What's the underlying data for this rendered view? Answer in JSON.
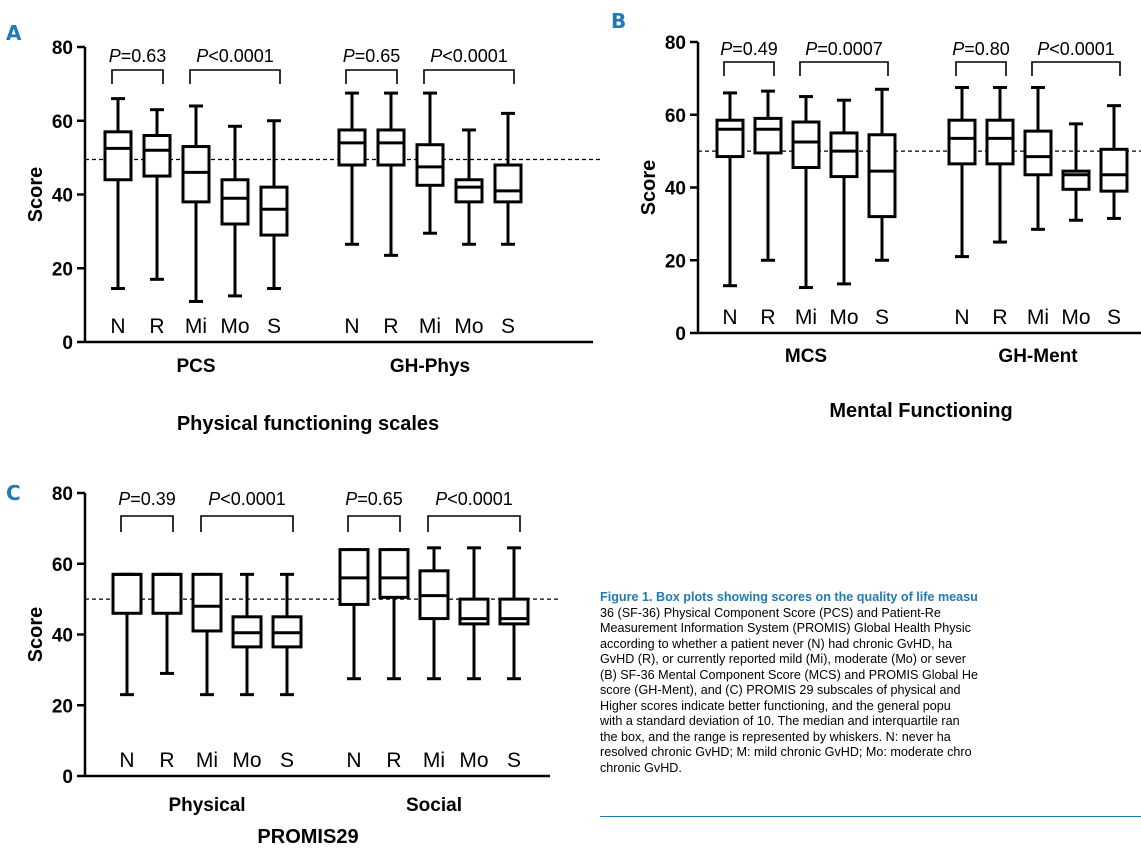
{
  "chart_data": [
    {
      "type": "boxplot",
      "panel_label": "A",
      "title": "Physical functioning scales",
      "ylabel": "Score",
      "ylim": [
        0,
        80
      ],
      "yticks": [
        0,
        20,
        40,
        60,
        80
      ],
      "reference_line": 49.5,
      "groups": [
        {
          "name": "PCS",
          "pvalues": [
            "=0.63",
            "<0.0001"
          ],
          "boxes": [
            {
              "label": "N",
              "min": 14.5,
              "q1": 44,
              "median": 52.5,
              "q3": 57,
              "max": 66
            },
            {
              "label": "R",
              "min": 17,
              "q1": 45,
              "median": 52,
              "q3": 56,
              "max": 63
            },
            {
              "label": "Mi",
              "min": 11,
              "q1": 38,
              "median": 46,
              "q3": 53,
              "max": 64
            },
            {
              "label": "Mo",
              "min": 12.5,
              "q1": 32,
              "median": 39,
              "q3": 44,
              "max": 58.5
            },
            {
              "label": "S",
              "min": 14.5,
              "q1": 29,
              "median": 36,
              "q3": 42,
              "max": 60
            }
          ]
        },
        {
          "name": "GH-Phys",
          "pvalues": [
            "=0.65",
            "<0.0001"
          ],
          "boxes": [
            {
              "label": "N",
              "min": 26.5,
              "q1": 48,
              "median": 54,
              "q3": 57.5,
              "max": 67.5
            },
            {
              "label": "R",
              "min": 23.5,
              "q1": 48,
              "median": 54,
              "q3": 57.5,
              "max": 67.5
            },
            {
              "label": "Mi",
              "min": 29.5,
              "q1": 42.5,
              "median": 47.5,
              "q3": 53.5,
              "max": 67.5
            },
            {
              "label": "Mo",
              "min": 26.5,
              "q1": 38,
              "median": 42,
              "q3": 44,
              "max": 57.5
            },
            {
              "label": "S",
              "min": 26.5,
              "q1": 38,
              "median": 41,
              "q3": 48,
              "max": 62
            }
          ]
        }
      ]
    },
    {
      "type": "boxplot",
      "panel_label": "B",
      "title": "Mental Functioning",
      "ylabel": "Score",
      "ylim": [
        0,
        80
      ],
      "yticks": [
        0,
        20,
        40,
        60,
        80
      ],
      "reference_line": 50,
      "groups": [
        {
          "name": "MCS",
          "pvalues": [
            "=0.49",
            "=0.0007"
          ],
          "boxes": [
            {
              "label": "N",
              "min": 13,
              "q1": 48.5,
              "median": 56,
              "q3": 58.5,
              "max": 66
            },
            {
              "label": "R",
              "min": 20,
              "q1": 49.5,
              "median": 56,
              "q3": 59,
              "max": 66.5
            },
            {
              "label": "Mi",
              "min": 12.5,
              "q1": 45.5,
              "median": 52.5,
              "q3": 58,
              "max": 65
            },
            {
              "label": "Mo",
              "min": 13.5,
              "q1": 43,
              "median": 50,
              "q3": 55,
              "max": 64
            },
            {
              "label": "S",
              "min": 20,
              "q1": 32,
              "median": 44.5,
              "q3": 54.5,
              "max": 67
            }
          ]
        },
        {
          "name": "GH-Ment",
          "pvalues": [
            "=0.80",
            "<0.0001"
          ],
          "boxes": [
            {
              "label": "N",
              "min": 21,
              "q1": 46.5,
              "median": 53.5,
              "q3": 58.5,
              "max": 67.5
            },
            {
              "label": "R",
              "min": 25,
              "q1": 46.5,
              "median": 53.5,
              "q3": 58.5,
              "max": 67.5
            },
            {
              "label": "Mi",
              "min": 28.5,
              "q1": 43.5,
              "median": 48.5,
              "q3": 55.5,
              "max": 67.5
            },
            {
              "label": "Mo",
              "min": 31,
              "q1": 39.5,
              "median": 43.5,
              "q3": 44.5,
              "max": 57.5
            },
            {
              "label": "S",
              "min": 31.5,
              "q1": 39,
              "median": 43.5,
              "q3": 50.5,
              "max": 62.5
            }
          ]
        }
      ]
    },
    {
      "type": "boxplot",
      "panel_label": "C",
      "title": "PROMIS29",
      "ylabel": "Score",
      "ylim": [
        0,
        80
      ],
      "yticks": [
        0,
        20,
        40,
        60,
        80
      ],
      "reference_line": 50,
      "groups": [
        {
          "name": "Physical",
          "pvalues": [
            "=0.39",
            "<0.0001"
          ],
          "boxes": [
            {
              "label": "N",
              "min": 23,
              "q1": 46,
              "median": 57,
              "q3": 57,
              "max": 57
            },
            {
              "label": "R",
              "min": 29,
              "q1": 46,
              "median": 57,
              "q3": 57,
              "max": 57
            },
            {
              "label": "Mi",
              "min": 23,
              "q1": 41,
              "median": 48,
              "q3": 57,
              "max": 57
            },
            {
              "label": "Mo",
              "min": 23,
              "q1": 36.5,
              "median": 40.5,
              "q3": 45,
              "max": 57
            },
            {
              "label": "S",
              "min": 23,
              "q1": 36.5,
              "median": 40.5,
              "q3": 45,
              "max": 57
            }
          ]
        },
        {
          "name": "Social",
          "pvalues": [
            "=0.65",
            "<0.0001"
          ],
          "boxes": [
            {
              "label": "N",
              "min": 27.5,
              "q1": 48.5,
              "median": 56,
              "q3": 64,
              "max": 64
            },
            {
              "label": "R",
              "min": 27.5,
              "q1": 50.5,
              "median": 56,
              "q3": 64,
              "max": 64
            },
            {
              "label": "Mi",
              "min": 27.5,
              "q1": 44.5,
              "median": 51,
              "q3": 58,
              "max": 64.5
            },
            {
              "label": "Mo",
              "min": 27.5,
              "q1": 43,
              "median": 44.5,
              "q3": 50,
              "max": 64.5
            },
            {
              "label": "S",
              "min": 27.5,
              "q1": 43,
              "median": 44.5,
              "q3": 50,
              "max": 64.5
            }
          ]
        }
      ]
    }
  ],
  "caption": {
    "lines": [
      [
        {
          "t": "Figure 1. Box plots showing scores on the quality of life measu",
          "title": true
        }
      ],
      [
        {
          "t": "36 (SF-36) Physical Component Score (PCS) and Patient-Re",
          "title": false
        }
      ],
      [
        {
          "t": "Measurement Information System (PROMIS) Global Health Physic",
          "title": false
        }
      ],
      [
        {
          "t": "according to whether a patient never (N) had chronic GvHD, ha",
          "title": false
        }
      ],
      [
        {
          "t": "GvHD (R), or currently reported mild (Mi), moderate (Mo) or sever",
          "title": false
        }
      ],
      [
        {
          "t": "(B) SF-36 Mental Component Score (MCS) and PROMIS Global He",
          "title": false
        }
      ],
      [
        {
          "t": "score (GH-Ment), and (C) PROMIS 29 subscales of physical and",
          "title": false
        }
      ],
      [
        {
          "t": "Higher scores indicate better functioning, and the general popu",
          "title": false
        }
      ],
      [
        {
          "t": "with a standard deviation of 10. The median and interquartile ran",
          "title": false
        }
      ],
      [
        {
          "t": "the box, and the range is represented by whiskers. N: never ha",
          "title": false
        }
      ],
      [
        {
          "t": "resolved chronic GvHD; M: mild chronic GvHD; Mo: moderate chro",
          "title": false
        }
      ],
      [
        {
          "t": "chronic GvHD.",
          "title": false
        }
      ]
    ]
  }
}
